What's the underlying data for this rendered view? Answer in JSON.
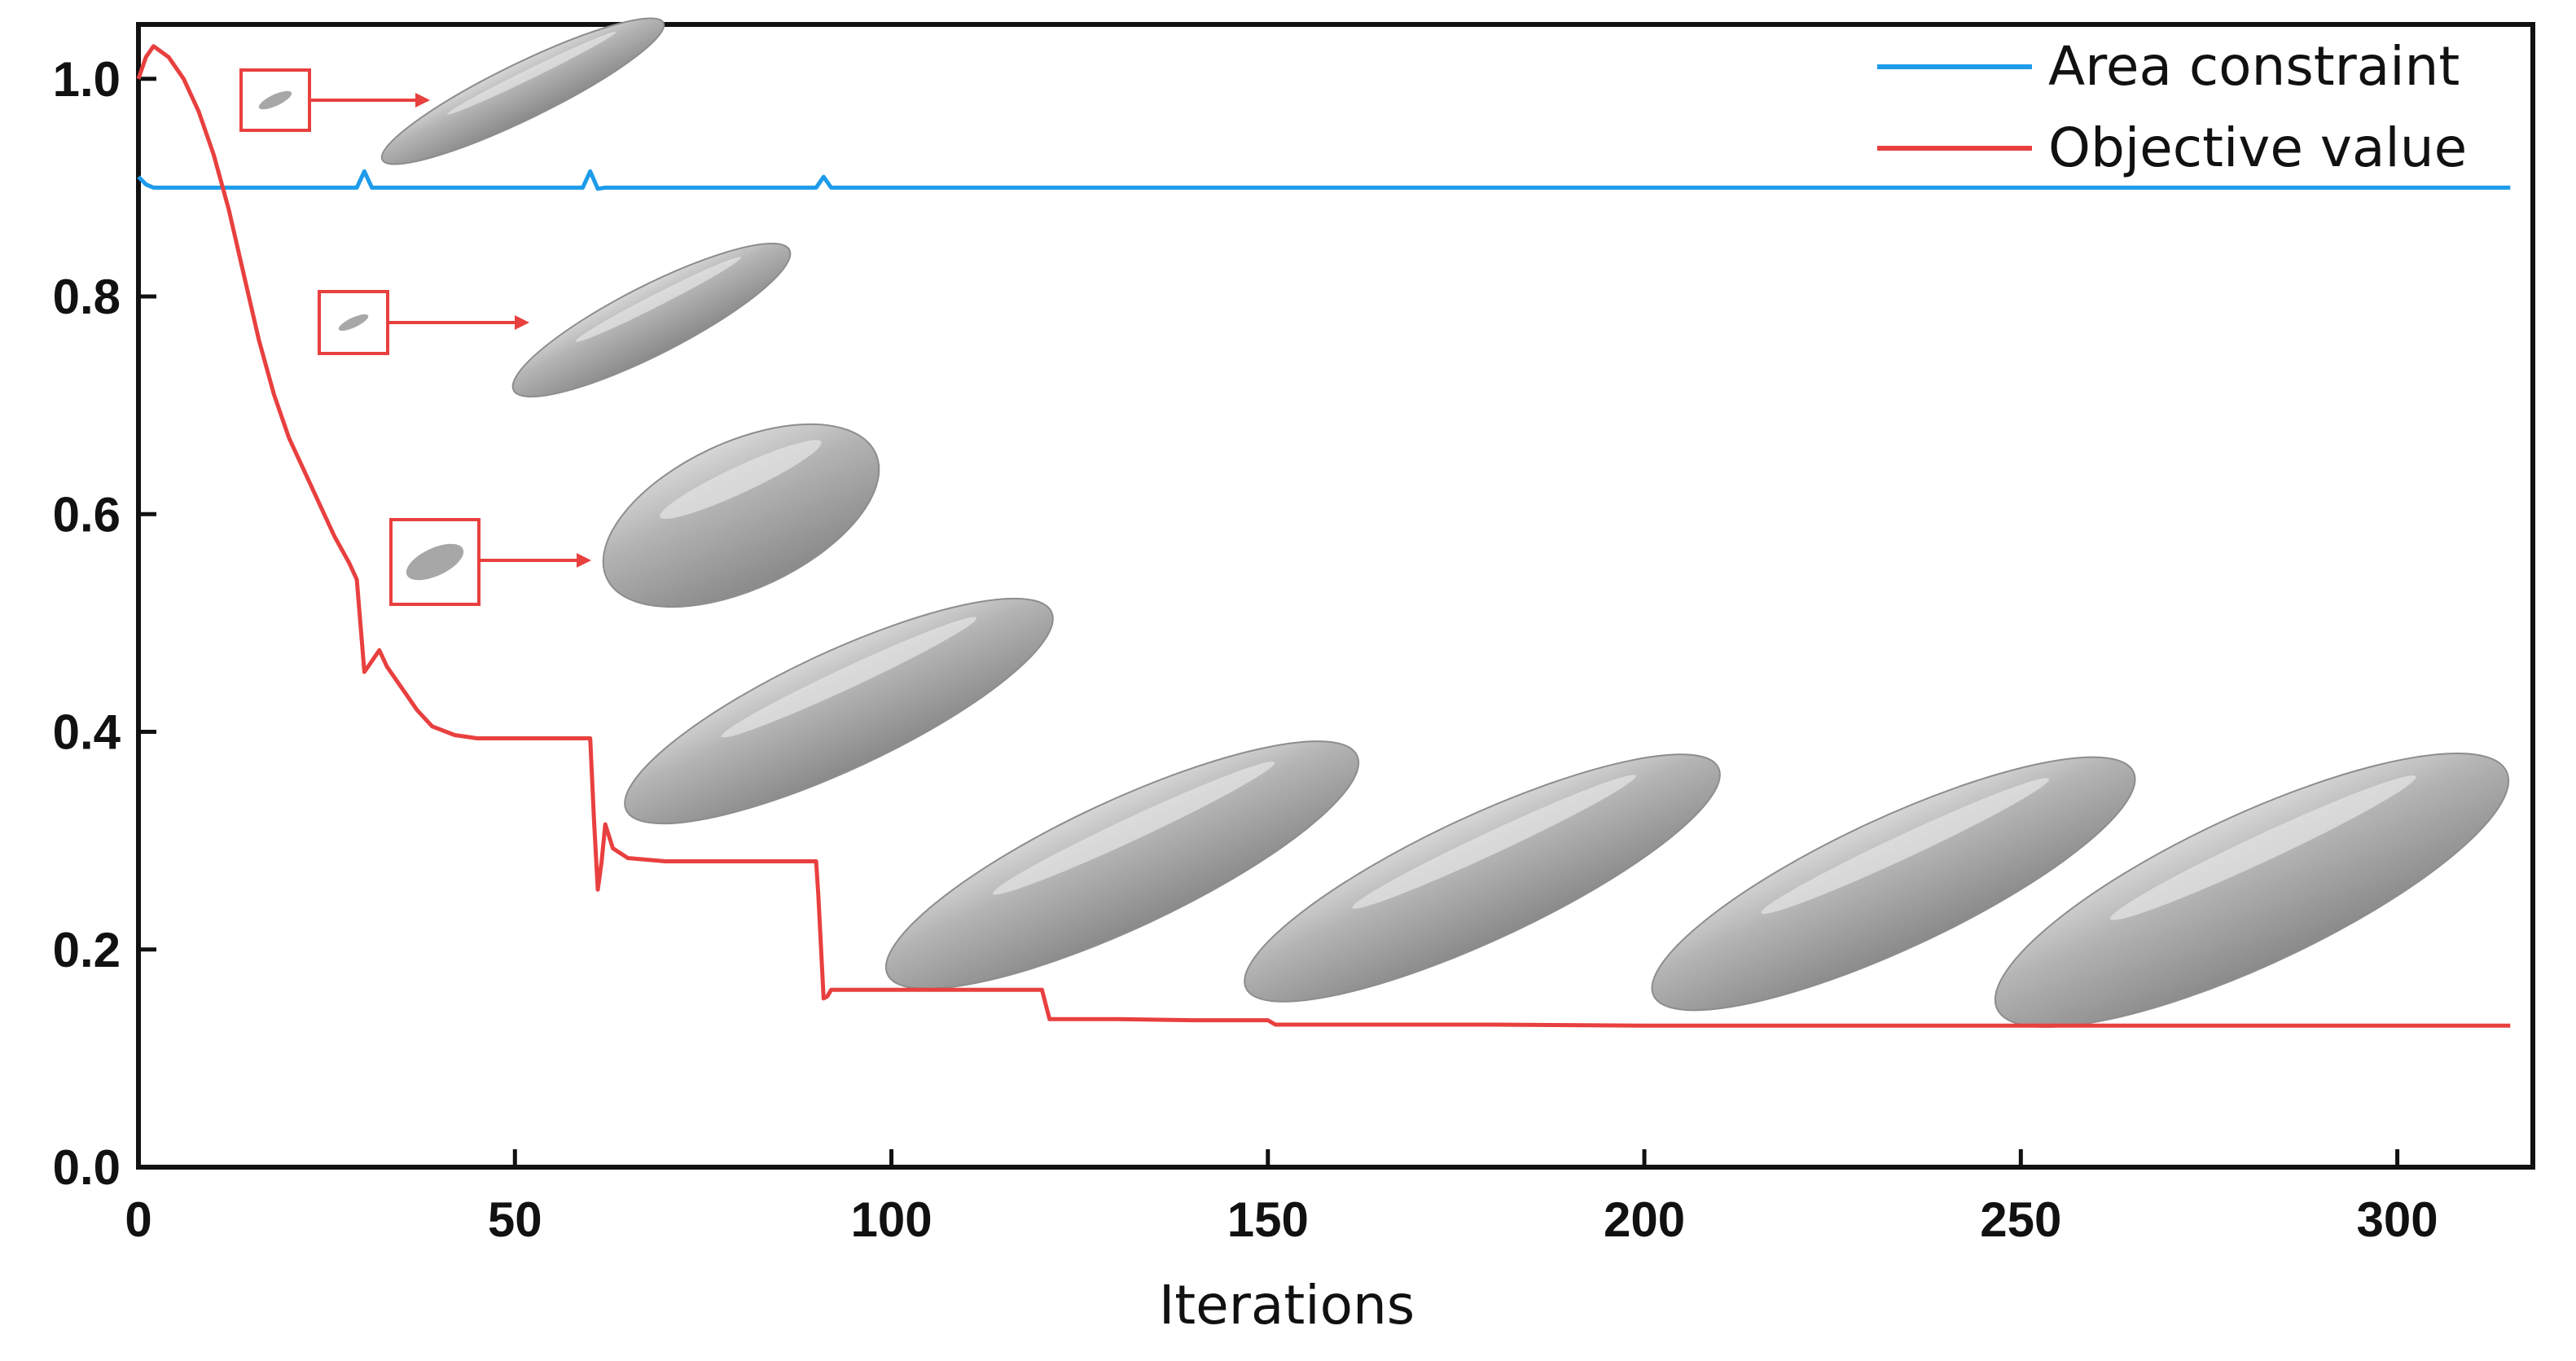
{
  "chart_data": {
    "type": "line",
    "title": "",
    "xlabel": "Iterations",
    "ylabel": "",
    "xlim": [
      0,
      318
    ],
    "ylim": [
      0,
      1.05
    ],
    "xticks": [
      0,
      50,
      100,
      150,
      200,
      250,
      300
    ],
    "xtick_labels": [
      "0",
      "50",
      "100",
      "150",
      "200",
      "250",
      "300"
    ],
    "yticks": [
      0.0,
      0.2,
      0.4,
      0.6,
      0.8,
      1.0
    ],
    "ytick_labels": [
      "0.0",
      "0.2",
      "0.4",
      "0.6",
      "0.8",
      "1.0"
    ],
    "grid": false,
    "legend_position": "top-right",
    "series": [
      {
        "name": "Area constraint",
        "color": "#1e9bea",
        "x": [
          0,
          1,
          2,
          29,
          30,
          31,
          59,
          60,
          61,
          62,
          90,
          91,
          92,
          315
        ],
        "y": [
          0.91,
          0.903,
          0.9,
          0.9,
          0.915,
          0.9,
          0.9,
          0.915,
          0.899,
          0.9,
          0.9,
          0.91,
          0.9,
          0.9
        ]
      },
      {
        "name": "Objective value",
        "color": "#e8403f",
        "x": [
          0,
          1,
          2,
          4,
          6,
          8,
          10,
          12,
          14,
          16,
          18,
          20,
          22,
          24,
          26,
          28,
          29,
          30,
          31,
          32,
          33,
          35,
          37,
          39,
          42,
          45,
          55,
          60,
          60.5,
          61,
          61.5,
          62,
          63,
          65,
          70,
          90,
          90.3,
          91,
          91.5,
          92,
          100,
          110,
          120,
          121,
          130,
          140,
          150,
          151,
          160,
          180,
          200,
          250,
          315
        ],
        "y": [
          1.0,
          1.02,
          1.03,
          1.02,
          1.0,
          0.97,
          0.93,
          0.88,
          0.82,
          0.76,
          0.71,
          0.67,
          0.64,
          0.61,
          0.58,
          0.555,
          0.54,
          0.455,
          0.465,
          0.475,
          0.46,
          0.44,
          0.42,
          0.405,
          0.397,
          0.394,
          0.394,
          0.394,
          0.32,
          0.255,
          0.28,
          0.315,
          0.293,
          0.284,
          0.281,
          0.281,
          0.25,
          0.155,
          0.157,
          0.163,
          0.163,
          0.163,
          0.163,
          0.136,
          0.136,
          0.135,
          0.135,
          0.131,
          0.131,
          0.131,
          0.13,
          0.13,
          0.13
        ]
      }
    ],
    "annotations": {
      "shape_color": "#a7a7a7",
      "box_color": "#e8403f"
    }
  }
}
